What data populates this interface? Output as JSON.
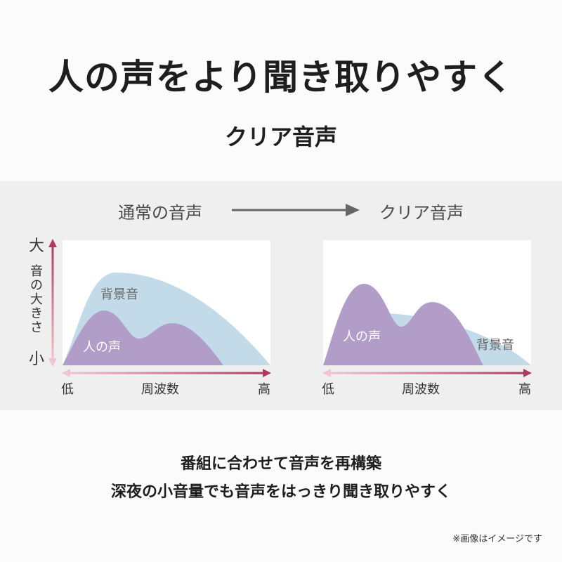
{
  "headline": "人の声をより聞き取りやすく",
  "subtitle": "クリア音声",
  "comparison": {
    "before_label": "通常の音声",
    "after_label": "クリア音声",
    "arrow_icon": "right-arrow-icon"
  },
  "axes": {
    "y_top": "大",
    "y_label_chars": [
      "音",
      "の",
      "大",
      "き",
      "さ"
    ],
    "y_bottom": "小",
    "x_low": "低",
    "x_label": "周波数",
    "x_high": "高"
  },
  "charts": {
    "normal": {
      "background_label": "背景音",
      "voice_label": "人の声"
    },
    "clear": {
      "background_label": "背景音",
      "voice_label": "人の声"
    }
  },
  "colors": {
    "background_sound": "#c3dbe8",
    "voice": "#b29dc9",
    "axis_gradient_dark": "#b03a60",
    "axis_gradient_light": "#f2c3cf",
    "panel_band": "#efefef"
  },
  "footer": {
    "line1": "番組に合わせて音声を再構築",
    "line2": "深夜の小音量でも音声をはっきり聞き取りやすく"
  },
  "note": "※画像はイメージです"
}
